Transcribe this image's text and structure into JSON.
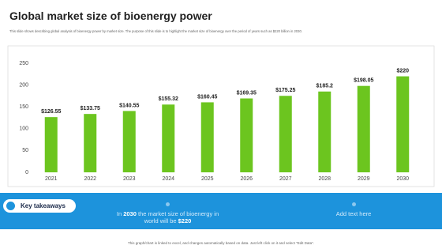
{
  "header": {
    "title": "Global market size of bioenergy power",
    "subtitle": "This slide shows describing global analysis of bioenergy power by market size. The purpose of this slide is to highlight the market size of bioenergy over the period of years such as $220 billion in 2030."
  },
  "chart_data": {
    "type": "bar",
    "categories": [
      "2021",
      "2022",
      "2023",
      "2024",
      "2025",
      "2026",
      "2027",
      "2028",
      "2029",
      "2030"
    ],
    "values": [
      126.55,
      133.75,
      140.55,
      155.32,
      160.45,
      169.35,
      175.25,
      185.2,
      198.05,
      220
    ],
    "value_labels": [
      "$126.55",
      "$133.75",
      "$140.55",
      "$155.32",
      "$160.45",
      "$169.35",
      "$175.25",
      "$185.2",
      "$198.05",
      "$220"
    ],
    "color": "#6cc51f",
    "ylim": [
      0,
      250
    ],
    "yticks": [
      0,
      50,
      100,
      150,
      200,
      250
    ],
    "grid": false
  },
  "takeaways": {
    "label": "Key takeaways",
    "items": [
      [
        "In ",
        "2030",
        " the market size of bioenergy in world will be ",
        "$220"
      ],
      [
        "Add text here"
      ]
    ]
  },
  "footer": "This graph/chart is linked to excel, and changes automatically based on data. Just left click on it and select \"Edit Data\"."
}
